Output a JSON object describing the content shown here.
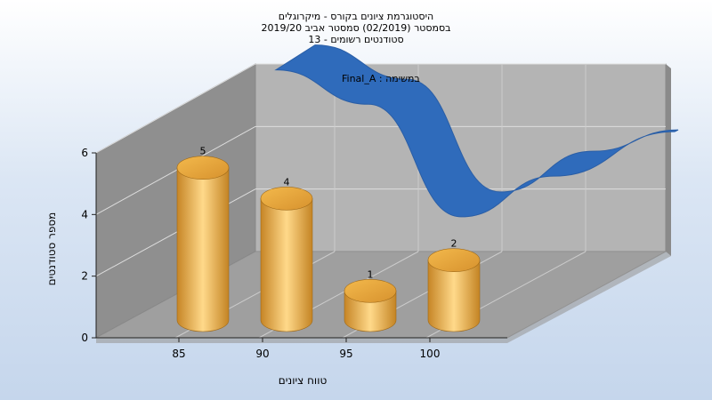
{
  "title_lines": [
    "היסטוגרמת ציונים בקורס - מיקרוגלים",
    "בסמסטר  (02/2019)  סמסטר אביב 2019/20",
    "סטודנטים רשומים - 13"
  ],
  "colors": {
    "bar": "#e8a640",
    "bar_light": "#ffd98a",
    "bar_dark": "#b87820",
    "curve": "#2f6bbb",
    "back_wall": "#b4b4b4",
    "side_wall": "#8f8f8f",
    "floor": "#a9a9a9"
  },
  "chart_data": {
    "type": "bar",
    "title": "היסטוגרמת ציונים בקורס - מיקרוגלים",
    "xlabel": "טווח ציונים",
    "ylabel": "מספר סטודנטים",
    "ylim": [
      0,
      6
    ],
    "yticks": [
      0,
      2,
      4,
      6
    ],
    "xticks": [
      85,
      90,
      95,
      100
    ],
    "categories": [
      85,
      90,
      95,
      100
    ],
    "values": [
      5,
      4,
      1,
      2
    ],
    "data_labels": [
      "5",
      "4",
      "1",
      "2"
    ],
    "annotation": "Final_A : במשימה",
    "series": [
      {
        "values": [
          5,
          4,
          1,
          2
        ]
      },
      {
        "values": [
          5.3,
          4.2,
          0.6,
          1.9
        ]
      }
    ],
    "grid": true,
    "three_d": true
  }
}
